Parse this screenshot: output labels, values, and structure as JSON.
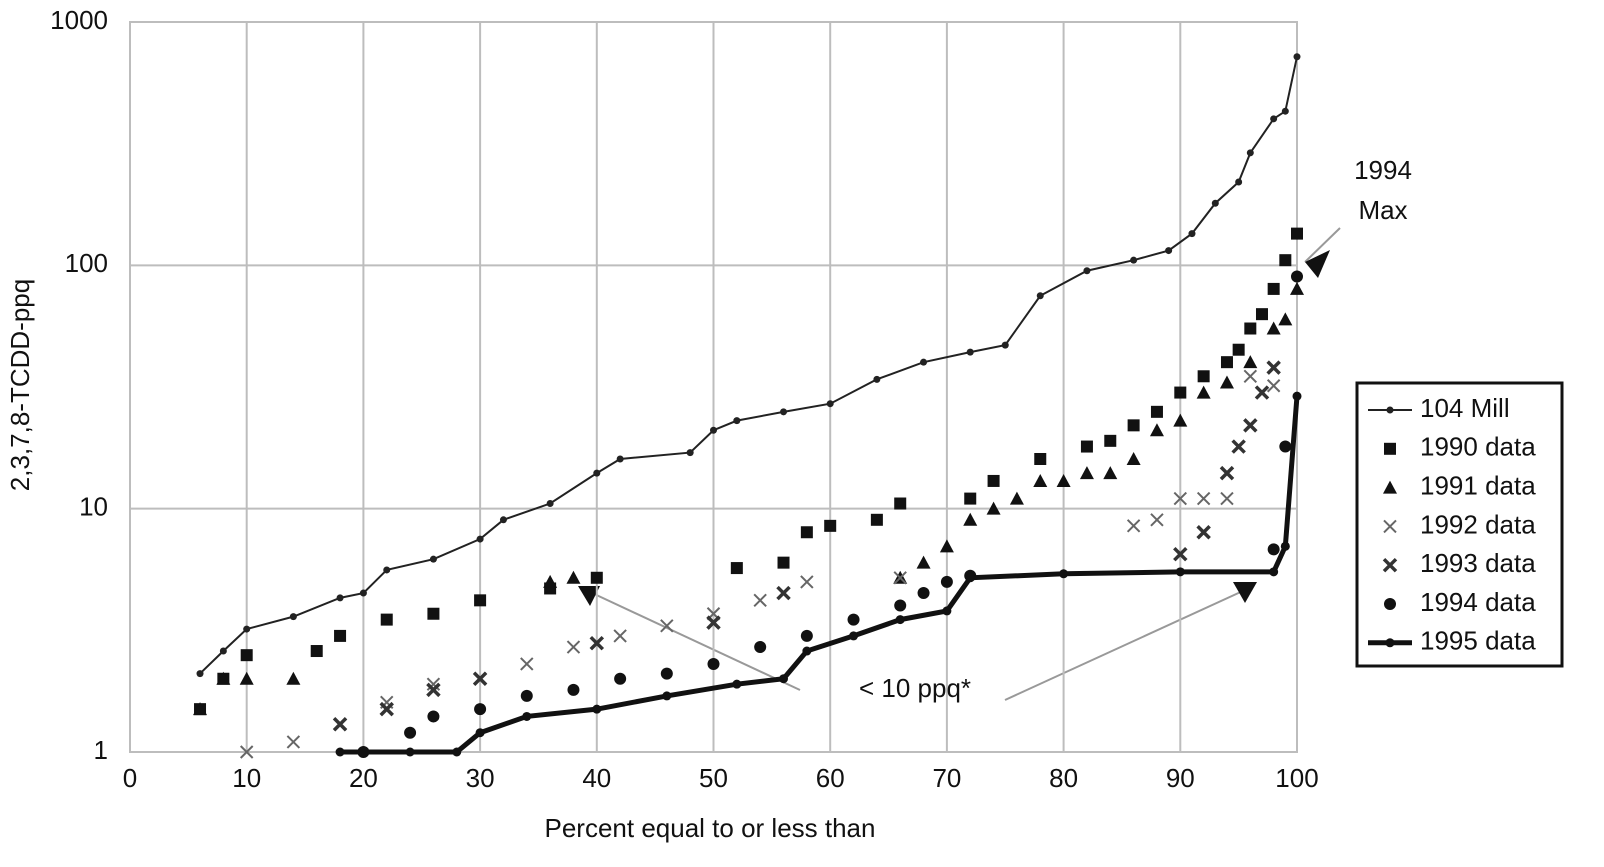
{
  "chart_data": {
    "type": "scatter",
    "x_label": "Percent equal to or less than",
    "y_label": "2,3,7,8-TCDD-ppq",
    "xlim": [
      0,
      100
    ],
    "xticks": [
      0,
      10,
      20,
      30,
      40,
      50,
      60,
      70,
      80,
      90,
      100
    ],
    "ylim": [
      1,
      1000
    ],
    "yticks": [
      1,
      10,
      100,
      1000
    ],
    "log_y": true,
    "grid": true,
    "legend": "right",
    "annotations": [
      {
        "text": [
          "1994",
          "Max"
        ]
      },
      {
        "text": "< 10 ppq*"
      }
    ],
    "series": [
      {
        "name": "104 Mill",
        "color": "#222222",
        "marker": "circle-line",
        "x": [
          6,
          8,
          10,
          14,
          18,
          20,
          22,
          26,
          30,
          32,
          36,
          40,
          42,
          48,
          50,
          52,
          56,
          60,
          64,
          68,
          72,
          75,
          78,
          82,
          86,
          89,
          91,
          93,
          95,
          96,
          98,
          99,
          100
        ],
        "values": [
          2.1,
          2.6,
          3.2,
          3.6,
          4.3,
          4.5,
          5.6,
          6.2,
          7.5,
          9.0,
          10.5,
          14,
          16,
          17,
          21,
          23,
          25,
          27,
          34,
          40,
          44,
          47,
          75,
          95,
          105,
          115,
          135,
          180,
          220,
          290,
          400,
          430,
          720
        ]
      },
      {
        "name": "1990 data",
        "color": "#111111",
        "marker": "square",
        "x": [
          6,
          8,
          10,
          16,
          18,
          22,
          26,
          30,
          36,
          40,
          52,
          56,
          58,
          60,
          64,
          66,
          72,
          74,
          78,
          82,
          84,
          86,
          88,
          90,
          92,
          94,
          95,
          96,
          97,
          98,
          99,
          100
        ],
        "values": [
          1.5,
          2.0,
          2.5,
          2.6,
          3.0,
          3.5,
          3.7,
          4.2,
          4.7,
          5.2,
          5.7,
          6.0,
          8.0,
          8.5,
          9.0,
          10.5,
          11,
          13,
          16,
          18,
          19,
          22,
          25,
          30,
          35,
          40,
          45,
          55,
          63,
          80,
          105,
          135
        ]
      },
      {
        "name": "1991 data",
        "color": "#111111",
        "marker": "triangle",
        "x": [
          6,
          8,
          10,
          14,
          36,
          38,
          66,
          68,
          70,
          72,
          74,
          76,
          78,
          80,
          82,
          84,
          86,
          88,
          90,
          92,
          94,
          96,
          98,
          99,
          100
        ],
        "values": [
          1.5,
          2.0,
          2.0,
          2.0,
          5.0,
          5.2,
          5.2,
          6.0,
          7.0,
          9.0,
          10,
          11,
          13,
          13,
          14,
          14,
          16,
          21,
          23,
          30,
          33,
          40,
          55,
          60,
          80
        ]
      },
      {
        "name": "1992 data",
        "color": "#666666",
        "marker": "x",
        "x": [
          10,
          14,
          18,
          22,
          26,
          30,
          34,
          38,
          42,
          46,
          50,
          54,
          58,
          66,
          86,
          88,
          90,
          92,
          94,
          96,
          98
        ],
        "values": [
          1.0,
          1.1,
          1.3,
          1.6,
          1.9,
          2.0,
          2.3,
          2.7,
          3.0,
          3.3,
          3.7,
          4.2,
          5.0,
          5.2,
          8.5,
          9.0,
          11,
          11,
          11,
          35,
          32
        ]
      },
      {
        "name": "1993 data",
        "color": "#333333",
        "marker": "x-bold",
        "x": [
          18,
          22,
          26,
          30,
          40,
          50,
          56,
          90,
          92,
          94,
          95,
          96,
          97,
          98
        ],
        "values": [
          1.3,
          1.5,
          1.8,
          2.0,
          2.8,
          3.4,
          4.5,
          6.5,
          8.0,
          14,
          18,
          22,
          30,
          38
        ]
      },
      {
        "name": "1994 data",
        "color": "#111111",
        "marker": "circle",
        "x": [
          20,
          24,
          26,
          30,
          34,
          38,
          42,
          46,
          50,
          54,
          58,
          62,
          66,
          68,
          70,
          72,
          98,
          99,
          100
        ],
        "values": [
          1.0,
          1.2,
          1.4,
          1.5,
          1.7,
          1.8,
          2.0,
          2.1,
          2.3,
          2.7,
          3.0,
          3.5,
          4.0,
          4.5,
          5.0,
          5.3,
          6.8,
          18,
          90
        ]
      },
      {
        "name": "1995 data",
        "color": "#111111",
        "marker": "thick-line",
        "x": [
          18,
          24,
          28,
          30,
          34,
          40,
          46,
          52,
          56,
          58,
          62,
          66,
          70,
          72,
          80,
          90,
          98,
          99,
          100
        ],
        "values": [
          1.0,
          1.0,
          1.0,
          1.2,
          1.4,
          1.5,
          1.7,
          1.9,
          2.0,
          2.6,
          3.0,
          3.5,
          3.8,
          5.2,
          5.4,
          5.5,
          5.5,
          7.0,
          29
        ]
      }
    ]
  }
}
